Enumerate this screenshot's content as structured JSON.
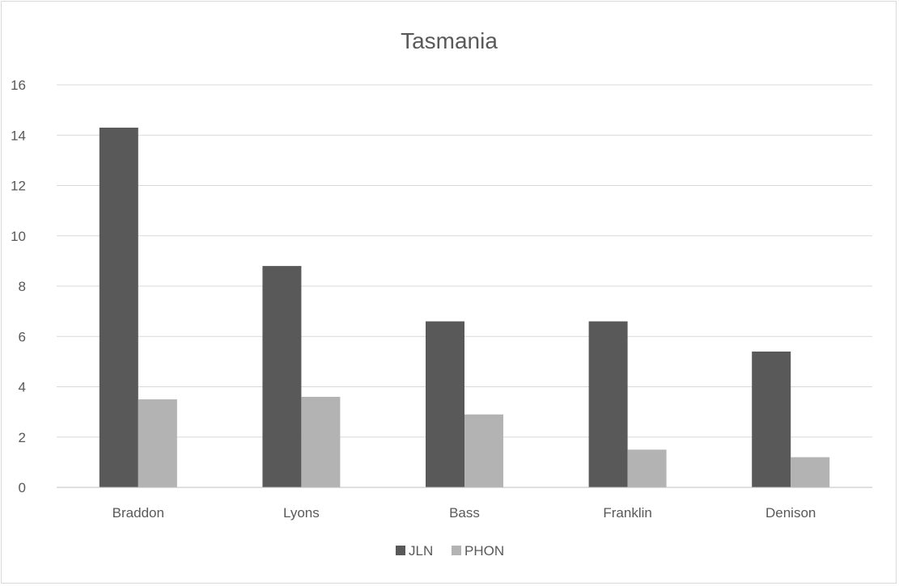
{
  "chart_data": {
    "type": "bar",
    "title": "Tasmania",
    "categories": [
      "Braddon",
      "Lyons",
      "Bass",
      "Franklin",
      "Denison"
    ],
    "series": [
      {
        "name": "JLN",
        "values": [
          14.3,
          8.8,
          6.6,
          6.6,
          5.4
        ],
        "color": "#595959"
      },
      {
        "name": "PHON",
        "values": [
          3.5,
          3.6,
          2.9,
          1.5,
          1.2
        ],
        "color": "#b3b3b3"
      }
    ],
    "ylim": [
      0,
      16
    ],
    "yticks": [
      0,
      2,
      4,
      6,
      8,
      10,
      12,
      14,
      16
    ],
    "grid": true,
    "legend": "bottom"
  }
}
